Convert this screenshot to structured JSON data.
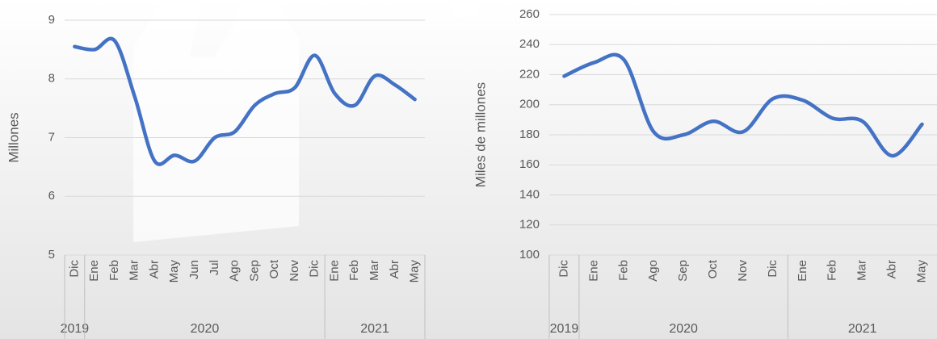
{
  "chart_data": [
    {
      "type": "line",
      "ylabel": "Millones",
      "categories": [
        "Dic",
        "Ene",
        "Feb",
        "Mar",
        "Abr",
        "May",
        "Jun",
        "Jul",
        "Ago",
        "Sep",
        "Oct",
        "Nov",
        "Dic",
        "Ene",
        "Feb",
        "Mar",
        "Abr",
        "May"
      ],
      "groups": [
        {
          "label": "2019",
          "count": 1
        },
        {
          "label": "2020",
          "count": 12
        },
        {
          "label": "2021",
          "count": 5
        }
      ],
      "series": [
        {
          "color": "#4472c4",
          "values": [
            8.55,
            8.5,
            8.65,
            7.7,
            6.6,
            6.7,
            6.6,
            7.0,
            7.1,
            7.55,
            7.75,
            7.85,
            8.4,
            7.75,
            7.55,
            8.05,
            7.9,
            7.65
          ]
        }
      ],
      "ylim": [
        5,
        9
      ],
      "yticks": [
        5,
        6,
        7,
        8,
        9
      ],
      "grid": true
    },
    {
      "type": "line",
      "ylabel": "Miles de millones",
      "categories": [
        "Dic",
        "Ene",
        "Feb",
        "Ago",
        "Sep",
        "Oct",
        "Nov",
        "Dic",
        "Ene",
        "Feb",
        "Mar",
        "Abr",
        "May"
      ],
      "groups": [
        {
          "label": "2019",
          "count": 1
        },
        {
          "label": "2020",
          "count": 7
        },
        {
          "label": "2021",
          "count": 5
        }
      ],
      "series": [
        {
          "color": "#4472c4",
          "values": [
            219,
            228,
            230,
            182,
            180,
            189,
            182,
            204,
            203,
            191,
            189,
            166,
            187
          ]
        }
      ],
      "ylim": [
        100,
        260
      ],
      "yticks": [
        100,
        120,
        140,
        160,
        180,
        200,
        220,
        240,
        260
      ],
      "grid": true
    }
  ]
}
